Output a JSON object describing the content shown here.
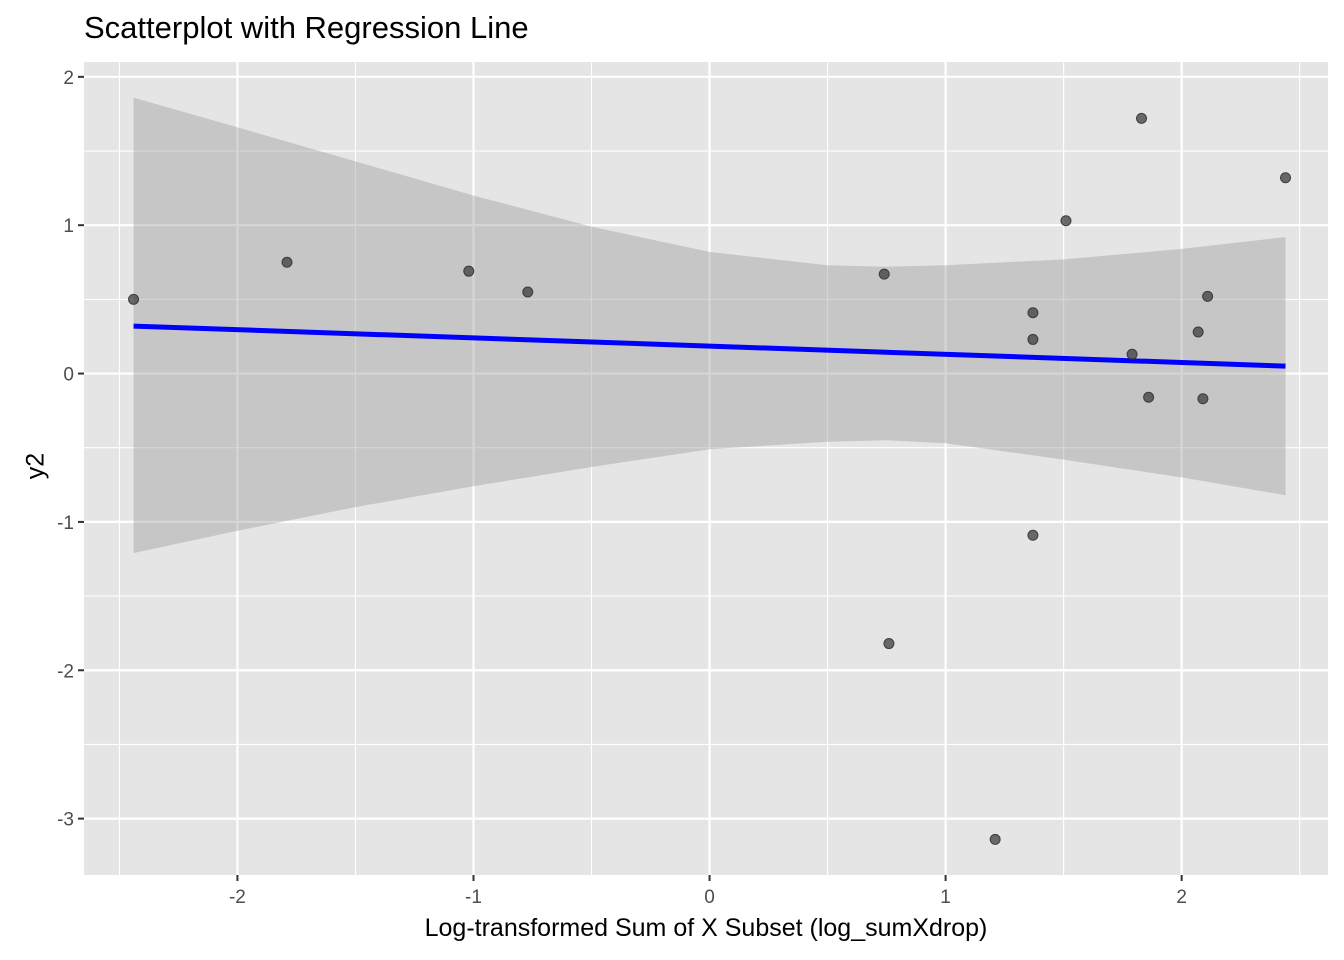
{
  "chart_data": {
    "type": "scatter",
    "title": "Scatterplot with Regression Line",
    "xlabel": "Log-transformed Sum of X Subset (log_sumXdrop)",
    "ylabel": "y2",
    "xlim": [
      -2.65,
      2.62
    ],
    "ylim": [
      -3.38,
      2.1
    ],
    "x_ticks": [
      -2,
      -1,
      0,
      1,
      2
    ],
    "y_ticks": [
      -3,
      -2,
      -1,
      0,
      1,
      2
    ],
    "grid": true,
    "points": [
      {
        "x": -2.44,
        "y": 0.5
      },
      {
        "x": -1.79,
        "y": 0.75
      },
      {
        "x": -1.02,
        "y": 0.69
      },
      {
        "x": -0.77,
        "y": 0.55
      },
      {
        "x": 0.74,
        "y": 0.67
      },
      {
        "x": 0.76,
        "y": -1.82
      },
      {
        "x": 1.21,
        "y": -3.14
      },
      {
        "x": 1.37,
        "y": 0.41
      },
      {
        "x": 1.37,
        "y": 0.23
      },
      {
        "x": 1.37,
        "y": -1.09
      },
      {
        "x": 1.51,
        "y": 1.03
      },
      {
        "x": 1.79,
        "y": 0.13
      },
      {
        "x": 1.83,
        "y": 1.72
      },
      {
        "x": 1.86,
        "y": -0.16
      },
      {
        "x": 2.07,
        "y": 0.28
      },
      {
        "x": 2.09,
        "y": -0.17
      },
      {
        "x": 2.11,
        "y": 0.52
      },
      {
        "x": 2.44,
        "y": 1.32
      }
    ],
    "regression_line": {
      "x": [
        -2.44,
        2.44
      ],
      "y": [
        0.32,
        0.05
      ],
      "color": "#0000ff"
    },
    "confidence_band": {
      "x": [
        -2.44,
        -2.0,
        -1.5,
        -1.0,
        -0.5,
        0.0,
        0.5,
        0.75,
        1.0,
        1.5,
        2.0,
        2.44
      ],
      "upper": [
        1.86,
        1.66,
        1.43,
        1.2,
        0.99,
        0.82,
        0.73,
        0.72,
        0.73,
        0.77,
        0.84,
        0.92
      ],
      "lower": [
        -1.21,
        -1.06,
        -0.9,
        -0.76,
        -0.63,
        -0.51,
        -0.46,
        -0.45,
        -0.47,
        -0.58,
        -0.7,
        -0.82
      ],
      "color": "#999999"
    },
    "colors": {
      "panel_background": "#e5e5e5",
      "grid": "#ffffff",
      "point": "#333333"
    }
  }
}
